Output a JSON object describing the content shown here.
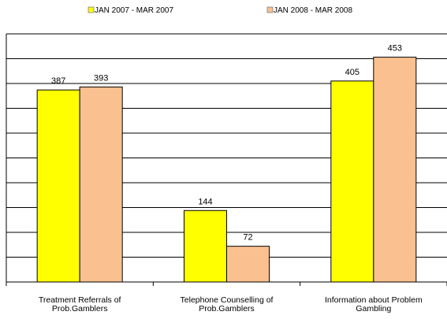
{
  "chart_data": {
    "type": "bar",
    "categories": [
      [
        "Treatment Referrals of",
        "Prob.Gamblers"
      ],
      [
        "Telephone Counselling of",
        "Prob.Gamblers"
      ],
      [
        "Information about Problem",
        "Gambling"
      ]
    ],
    "series": [
      {
        "name": "JAN 2007 - MAR 2007",
        "color": "#ffff00",
        "values": [
          387,
          144,
          405
        ]
      },
      {
        "name": "JAN 2008 - MAR 2008",
        "color": "#fac090",
        "values": [
          393,
          72,
          453
        ]
      }
    ],
    "ylim": [
      0,
      500
    ],
    "grid": true,
    "legend": "top"
  }
}
